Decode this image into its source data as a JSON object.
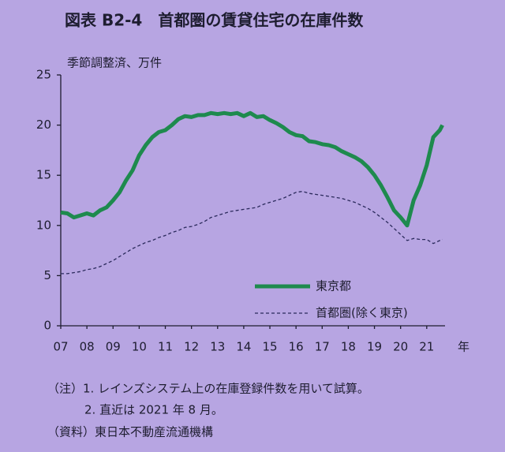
{
  "chart_data": {
    "type": "line",
    "title": "図表 B2-4　首都圏の賃貸住宅の在庫件数",
    "y_label": "季節調整済、万件",
    "x_label": "年",
    "x": [
      7,
      7.25,
      7.5,
      7.75,
      8,
      8.25,
      8.5,
      8.75,
      9,
      9.25,
      9.5,
      9.75,
      10,
      10.25,
      10.5,
      10.75,
      11,
      11.25,
      11.5,
      11.75,
      12,
      12.25,
      12.5,
      12.75,
      13,
      13.25,
      13.5,
      13.75,
      14,
      14.25,
      14.5,
      14.75,
      15,
      15.25,
      15.5,
      15.75,
      16,
      16.25,
      16.5,
      16.75,
      17,
      17.25,
      17.5,
      17.75,
      18,
      18.25,
      18.5,
      18.75,
      19,
      19.25,
      19.5,
      19.75,
      20,
      20.25,
      20.5,
      20.75,
      21,
      21.25,
      21.5,
      21.6
    ],
    "series": [
      {
        "name": "東京都",
        "color": "#1e8a4e",
        "dashed": false,
        "width": 5,
        "values": [
          11.3,
          11.2,
          10.8,
          11.0,
          11.2,
          11.0,
          11.5,
          11.8,
          12.5,
          13.3,
          14.5,
          15.5,
          17.0,
          18.0,
          18.8,
          19.3,
          19.5,
          20.0,
          20.6,
          20.9,
          20.8,
          21.0,
          21.0,
          21.2,
          21.1,
          21.2,
          21.1,
          21.2,
          20.9,
          21.2,
          20.8,
          20.9,
          20.5,
          20.2,
          19.8,
          19.3,
          19.0,
          18.9,
          18.4,
          18.3,
          18.1,
          18.0,
          17.8,
          17.4,
          17.1,
          16.8,
          16.4,
          15.8,
          15.0,
          14.0,
          12.8,
          11.5,
          10.8,
          10.0,
          12.5,
          14.0,
          16.0,
          18.8,
          19.5,
          20.0
        ]
      },
      {
        "name": "首都圏(除く東京)",
        "color": "#2b2a5c",
        "dashed": true,
        "width": 1.3,
        "values": [
          5.2,
          5.2,
          5.3,
          5.4,
          5.6,
          5.7,
          5.9,
          6.2,
          6.5,
          6.9,
          7.3,
          7.7,
          8.0,
          8.3,
          8.5,
          8.8,
          9.0,
          9.3,
          9.5,
          9.8,
          9.9,
          10.1,
          10.4,
          10.8,
          11.0,
          11.2,
          11.4,
          11.5,
          11.6,
          11.7,
          11.8,
          12.1,
          12.3,
          12.5,
          12.7,
          13.0,
          13.3,
          13.4,
          13.2,
          13.1,
          13.0,
          12.9,
          12.8,
          12.7,
          12.5,
          12.3,
          12.0,
          11.7,
          11.3,
          10.8,
          10.3,
          9.7,
          9.1,
          8.5,
          8.7,
          8.6,
          8.6,
          8.2,
          8.5,
          8.6
        ]
      }
    ],
    "xlim": [
      7,
      21.7
    ],
    "xticks": [
      {
        "value": 7,
        "label": "07"
      },
      {
        "value": 8,
        "label": "08"
      },
      {
        "value": 9,
        "label": "09"
      },
      10,
      11,
      12,
      13,
      14,
      15,
      16,
      17,
      18,
      19,
      20,
      21
    ],
    "ylim": [
      0,
      25
    ],
    "yticks": [
      0,
      5,
      10,
      15,
      20,
      25
    ],
    "legend": "lower right",
    "notes": [
      "（注）1. レインズシステム上の在庫登録件数を用いて試算。",
      "2. 直近は 2021 年 8 月。",
      "（資料）東日本不動産流通機構"
    ]
  }
}
